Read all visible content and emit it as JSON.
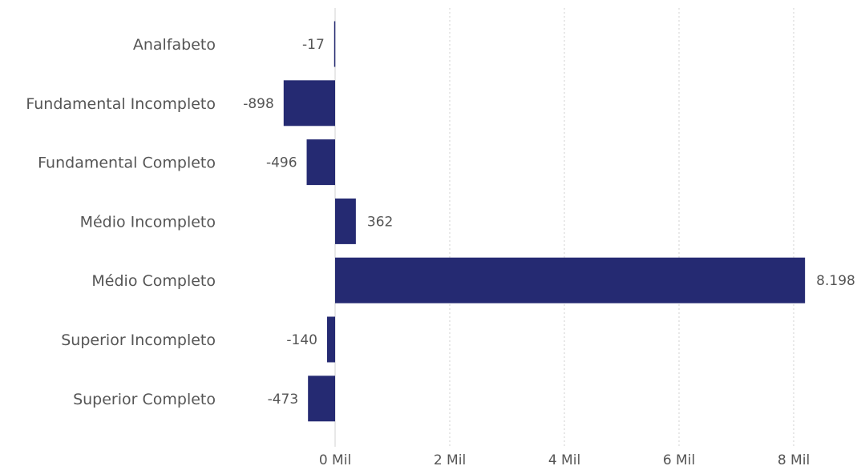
{
  "chart_data": {
    "type": "bar",
    "orientation": "horizontal",
    "categories": [
      "Analfabeto",
      "Fundamental Incompleto",
      "Fundamental Completo",
      "Médio Incompleto",
      "Médio Completo",
      "Superior Incompleto",
      "Superior Completo"
    ],
    "values": [
      -17,
      -898,
      -496,
      362,
      8198,
      -140,
      -473
    ],
    "data_labels": [
      "-17",
      "-898",
      "-496",
      "362",
      "8.198",
      "-140",
      "-473"
    ],
    "xlim": [
      -1000,
      8600
    ],
    "x_ticks": [
      0,
      2000,
      4000,
      6000,
      8000
    ],
    "x_tick_labels": [
      "0 Mil",
      "2 Mil",
      "4 Mil",
      "6 Mil",
      "8 Mil"
    ],
    "grid": "vertical dotted",
    "bar_color": "#252a72",
    "title": "",
    "xlabel": "",
    "ylabel": ""
  }
}
